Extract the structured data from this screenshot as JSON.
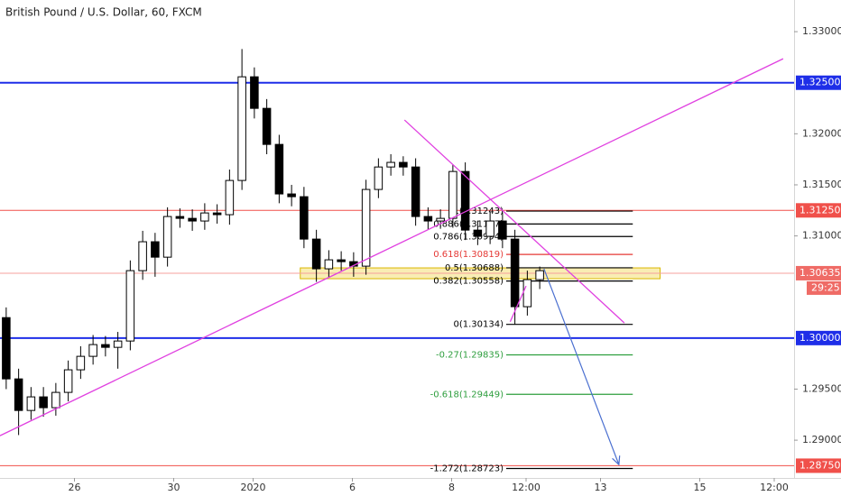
{
  "chart_data": {
    "type": "candlestick",
    "title": "British Pound / U.S. Dollar, 60, FXCM",
    "x": [
      0.125,
      0.375,
      0.625,
      0.875,
      1.125,
      1.375,
      1.625,
      1.875,
      2.125,
      2.375,
      2.625,
      2.875,
      3.125,
      3.375,
      3.625,
      3.875,
      4.125,
      4.375,
      4.625,
      4.875,
      5.125,
      5.375,
      5.625,
      5.875,
      6.125,
      6.375,
      6.625,
      6.875,
      7.125,
      7.375,
      7.625,
      7.875,
      8.125,
      8.375,
      8.625,
      8.875,
      9.125,
      9.375,
      9.625,
      9.875,
      10.125,
      10.375,
      10.625,
      10.875
    ],
    "open": [
      1.302,
      1.296,
      1.29291,
      1.29424,
      1.29318,
      1.29468,
      1.29689,
      1.29821,
      1.29936,
      1.29909,
      1.29971,
      1.3066,
      1.30943,
      1.30792,
      1.3119,
      1.31172,
      1.31146,
      1.31225,
      1.31208,
      1.31543,
      1.32558,
      1.32249,
      1.31896,
      1.31411,
      1.31384,
      1.30969,
      1.30678,
      1.30766,
      1.30748,
      1.30704,
      1.31455,
      1.31675,
      1.3172,
      1.31675,
      1.3119,
      1.31146,
      1.31172,
      1.31631,
      1.31057,
      1.30996,
      1.31146,
      1.30969,
      1.30307,
      1.30572
    ],
    "high": [
      1.303,
      1.297,
      1.2952,
      1.2952,
      1.2956,
      1.2978,
      1.2992,
      1.3003,
      1.3002,
      1.3006,
      1.3076,
      1.3105,
      1.3103,
      1.3128,
      1.3127,
      1.3126,
      1.3132,
      1.3131,
      1.3165,
      1.3283,
      1.3265,
      1.3234,
      1.3199,
      1.315,
      1.3148,
      1.3106,
      1.3086,
      1.3085,
      1.3084,
      1.3155,
      1.3176,
      1.318,
      1.3178,
      1.3176,
      1.3128,
      1.3126,
      1.317,
      1.3172,
      1.3115,
      1.3124,
      1.3123,
      1.3106,
      1.3066,
      1.307
    ],
    "low": [
      1.295,
      1.2905,
      1.292,
      1.2923,
      1.2924,
      1.2938,
      1.296,
      1.2974,
      1.2982,
      1.297,
      1.2988,
      1.3057,
      1.306,
      1.307,
      1.3108,
      1.3105,
      1.3106,
      1.3112,
      1.3111,
      1.3145,
      1.3215,
      1.318,
      1.3132,
      1.3129,
      1.3088,
      1.3055,
      1.3059,
      1.3066,
      1.306,
      1.3062,
      1.3137,
      1.3159,
      1.3159,
      1.311,
      1.3106,
      1.3107,
      1.3108,
      1.3096,
      1.3091,
      1.3092,
      1.3088,
      1.30134,
      1.3022,
      1.3048
    ],
    "close": [
      1.296,
      1.29291,
      1.29424,
      1.29318,
      1.29468,
      1.29689,
      1.29821,
      1.29936,
      1.29909,
      1.29971,
      1.3066,
      1.30943,
      1.30792,
      1.3119,
      1.31172,
      1.31146,
      1.31225,
      1.31208,
      1.31543,
      1.32558,
      1.32249,
      1.31896,
      1.31411,
      1.31384,
      1.30969,
      1.30678,
      1.30766,
      1.30748,
      1.30704,
      1.31455,
      1.31675,
      1.3172,
      1.31675,
      1.3119,
      1.31146,
      1.31172,
      1.31631,
      1.31057,
      1.30996,
      1.31146,
      1.30969,
      1.30307,
      1.30572,
      1.3066
    ],
    "up_color": "#ffffff",
    "down_color": "#000000",
    "xlim": [
      0,
      16
    ],
    "ylim": [
      1.2863,
      1.3331
    ],
    "xticks": [
      {
        "value": 1.5,
        "label": "26"
      },
      {
        "value": 3.5,
        "label": "30"
      },
      {
        "value": 5.1,
        "label": "2020"
      },
      {
        "value": 7.1,
        "label": "6"
      },
      {
        "value": 9.1,
        "label": "8"
      },
      {
        "value": 10.6,
        "label": "12:00"
      },
      {
        "value": 12.1,
        "label": "13"
      },
      {
        "value": 14.1,
        "label": "15"
      },
      {
        "value": 15.6,
        "label": "12:00"
      }
    ],
    "yticks": [
      {
        "value": 1.33,
        "label": "1.33000"
      },
      {
        "value": 1.32,
        "label": "1.32000"
      },
      {
        "value": 1.315,
        "label": "1.31500"
      },
      {
        "value": 1.31,
        "label": "1.31000"
      },
      {
        "value": 1.295,
        "label": "1.29500"
      },
      {
        "value": 1.29,
        "label": "1.29000"
      }
    ],
    "levels": [
      {
        "value": 1.325,
        "label": "1.32500",
        "color": "#1e2ee8",
        "thick": true
      },
      {
        "value": 1.3125,
        "label": "1.31250",
        "color": "#f0504a",
        "thick": false
      },
      {
        "value": 1.30635,
        "label": "1.30635",
        "color": "#f5a09c",
        "thick": false
      },
      {
        "value": 1.3,
        "label": "1.30000",
        "color": "#1e2ee8",
        "thick": true
      },
      {
        "value": 1.2875,
        "label": "1.28750",
        "color": "#f0504a",
        "thick": false
      }
    ],
    "countdown": "29:25",
    "zone": {
      "x": [
        6.05,
        13.3
      ],
      "y": [
        1.30581,
        1.30687
      ],
      "color": "#f7e79a"
    },
    "trendlines": [
      {
        "x": [
          0,
          15.78
        ],
        "y": [
          1.29044,
          1.32735
        ],
        "color": "#e040e0"
      },
      {
        "x": [
          8.15,
          12.58
        ],
        "y": [
          1.32135,
          1.30148
        ],
        "color": "#e040e0"
      },
      {
        "x": [
          10.28,
          10.6
        ],
        "y": [
          1.3016,
          1.3051
        ],
        "color": "#e040e0"
      }
    ],
    "arrow": {
      "x": [
        10.96,
        12.47
      ],
      "y": [
        1.30678,
        1.28761
      ],
      "color": "#4a6fd0"
    },
    "fib_x": [
      10.2,
      12.75
    ],
    "fibs": [
      {
        "value": 1.31243,
        "label": "1(1.31243)",
        "color": "#000000"
      },
      {
        "value": 1.31117,
        "label": "0.886(1.31117)",
        "color": "#000000"
      },
      {
        "value": 1.30994,
        "label": "0.786(1.30994)",
        "color": "#000000"
      },
      {
        "value": 1.30819,
        "label": "0.618(1.30819)",
        "color": "#e53935"
      },
      {
        "value": 1.30688,
        "label": "0.5(1.30688)",
        "color": "#000000"
      },
      {
        "value": 1.30558,
        "label": "0.382(1.30558)",
        "color": "#000000"
      },
      {
        "value": 1.30134,
        "label": "0(1.30134)",
        "color": "#000000"
      },
      {
        "value": 1.29835,
        "label": "-0.27(1.29835)",
        "color": "#2e9e3e"
      },
      {
        "value": 1.29449,
        "label": "-0.618(1.29449)",
        "color": "#2e9e3e"
      },
      {
        "value": 1.28723,
        "label": "-1.272(1.28723)",
        "color": "#000000"
      }
    ]
  }
}
